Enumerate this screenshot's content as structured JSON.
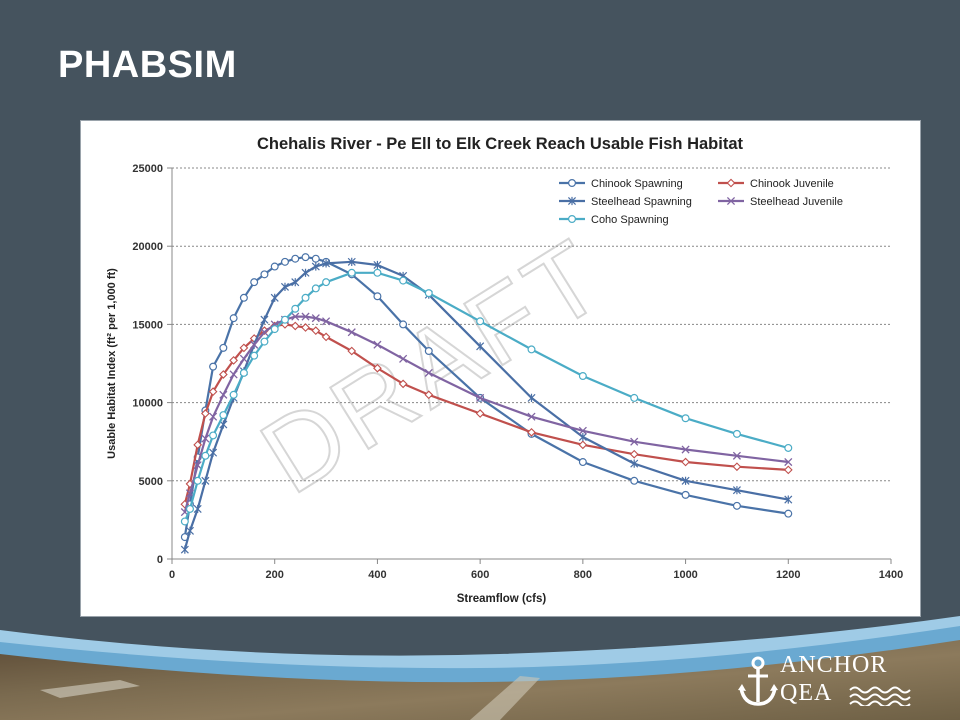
{
  "slide": {
    "title": "PHABSIM",
    "background": "#45535e"
  },
  "watermark": "DRAFT",
  "logo": {
    "line1": "ANCHOR",
    "line2": "QEA",
    "icon": "anchor-icon"
  },
  "chart_data": {
    "type": "line",
    "title": "Chehalis River - Pe Ell to Elk Creek Reach Usable Fish Habitat",
    "xlabel": "Streamflow (cfs)",
    "ylabel": "Usable Habitat Index (ft² per 1,000 ft)",
    "xlim": [
      0,
      1400
    ],
    "ylim": [
      0,
      25000
    ],
    "xticks": [
      0,
      200,
      400,
      600,
      800,
      1000,
      1200,
      1400
    ],
    "yticks": [
      0,
      5000,
      10000,
      15000,
      20000,
      25000
    ],
    "grid": "horizontal",
    "legend_position": "top-right",
    "series": [
      {
        "name": "Chinook Spawning",
        "color": "#4a73a8",
        "marker": "circle",
        "x": [
          25,
          35,
          50,
          65,
          80,
          100,
          120,
          140,
          160,
          180,
          200,
          220,
          240,
          260,
          280,
          300,
          350,
          400,
          450,
          500,
          600,
          700,
          800,
          900,
          1000,
          1100,
          1200
        ],
        "y": [
          1400,
          3500,
          6500,
          9500,
          12300,
          13500,
          15400,
          16700,
          17700,
          18200,
          18700,
          19000,
          19200,
          19300,
          19200,
          19000,
          18200,
          16800,
          15000,
          13300,
          10300,
          8000,
          6200,
          5000,
          4100,
          3400,
          2900
        ]
      },
      {
        "name": "Chinook Juvenile",
        "color": "#c0504d",
        "marker": "diamond",
        "x": [
          25,
          35,
          50,
          65,
          80,
          100,
          120,
          140,
          160,
          180,
          200,
          220,
          240,
          260,
          280,
          300,
          350,
          400,
          450,
          500,
          600,
          700,
          800,
          900,
          1000,
          1100,
          1200
        ],
        "y": [
          3500,
          4800,
          7300,
          9300,
          10700,
          11800,
          12700,
          13500,
          14100,
          14600,
          14900,
          15000,
          14900,
          14800,
          14600,
          14200,
          13300,
          12200,
          11200,
          10500,
          9300,
          8100,
          7300,
          6700,
          6200,
          5900,
          5700
        ]
      },
      {
        "name": "Steelhead Spawning",
        "color": "#4a6fa5",
        "marker": "star",
        "x": [
          25,
          35,
          50,
          65,
          80,
          100,
          120,
          140,
          160,
          180,
          200,
          220,
          240,
          260,
          280,
          300,
          350,
          400,
          450,
          500,
          600,
          700,
          800,
          900,
          1000,
          1100,
          1200
        ],
        "y": [
          600,
          1800,
          3200,
          5000,
          6800,
          8600,
          10300,
          12000,
          13700,
          15300,
          16700,
          17400,
          17700,
          18300,
          18700,
          18900,
          19000,
          18800,
          18100,
          16900,
          13600,
          10300,
          7800,
          6100,
          5000,
          4400,
          3800
        ]
      },
      {
        "name": "Steelhead Juvenile",
        "color": "#8064a2",
        "marker": "x",
        "x": [
          25,
          35,
          50,
          65,
          80,
          100,
          120,
          140,
          160,
          180,
          200,
          220,
          240,
          260,
          280,
          300,
          350,
          400,
          450,
          500,
          600,
          700,
          800,
          900,
          1000,
          1100,
          1200
        ],
        "y": [
          3000,
          4200,
          6000,
          7700,
          9100,
          10500,
          11800,
          12800,
          13700,
          14500,
          15000,
          15300,
          15500,
          15500,
          15400,
          15200,
          14500,
          13700,
          12800,
          11900,
          10300,
          9100,
          8200,
          7500,
          7000,
          6600,
          6200
        ]
      },
      {
        "name": "Coho Spawning",
        "color": "#4bacc6",
        "marker": "circle",
        "x": [
          25,
          35,
          50,
          65,
          80,
          100,
          120,
          140,
          160,
          180,
          200,
          220,
          240,
          260,
          280,
          300,
          350,
          400,
          450,
          500,
          600,
          700,
          800,
          900,
          1000,
          1100,
          1200
        ],
        "y": [
          2400,
          3200,
          5000,
          6600,
          7900,
          9200,
          10500,
          11900,
          13000,
          13900,
          14700,
          15300,
          16000,
          16700,
          17300,
          17700,
          18300,
          18300,
          17800,
          17000,
          15200,
          13400,
          11700,
          10300,
          9000,
          8000,
          7100
        ]
      }
    ]
  }
}
